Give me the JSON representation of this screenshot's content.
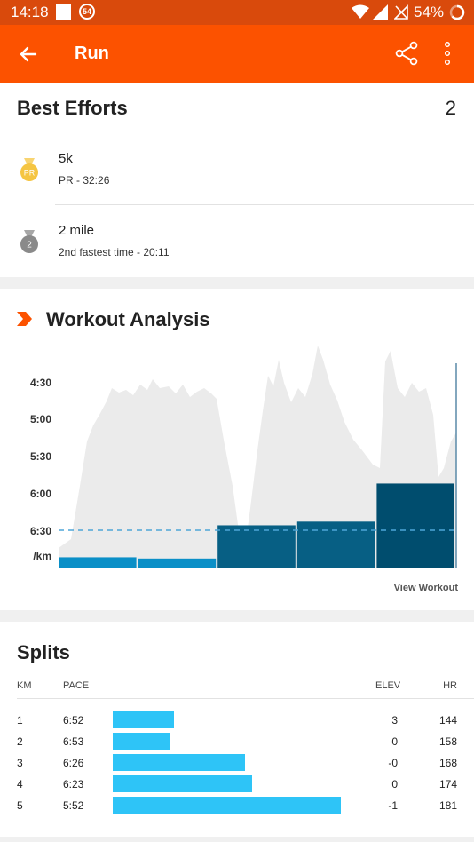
{
  "status_bar": {
    "time": "14:18",
    "notification_count": "54",
    "battery": "54%"
  },
  "app_bar": {
    "title": "Run"
  },
  "best_efforts": {
    "title": "Best Efforts",
    "count": "2",
    "items": [
      {
        "name": "5k",
        "detail": "PR - 32:26",
        "badge": "PR",
        "icon": "pr-medal-icon",
        "color": "#f5c542"
      },
      {
        "name": "2 mile",
        "detail": "2nd fastest time - 20:11",
        "badge": "2",
        "icon": "second-place-medal-icon",
        "color": "#8a8a8a"
      }
    ]
  },
  "workout_analysis": {
    "title": "Workout Analysis",
    "view_link": "View Workout",
    "average_pace": "6:30",
    "y_ticks": [
      "4:30",
      "5:00",
      "5:30",
      "6:00",
      "6:30",
      "/km"
    ]
  },
  "chart_data": {
    "type": "bar",
    "categories": [
      "1",
      "2",
      "3",
      "4",
      "5"
    ],
    "values_seconds_per_km": [
      412,
      413,
      386,
      383,
      352
    ],
    "values": [
      "6:52",
      "6:53",
      "6:26",
      "6:23",
      "5:52"
    ],
    "y_ticks": [
      "4:30",
      "5:00",
      "5:30",
      "6:00",
      "6:30"
    ],
    "ylabel": "/km",
    "average": "6:30",
    "colors": {
      "slow": "#0a8fc7",
      "mid": "#075f84",
      "fast": "#004d6e",
      "background_pace": "#ebebeb"
    }
  },
  "splits": {
    "title": "Splits",
    "headers": {
      "km": "KM",
      "pace": "PACE",
      "elev": "ELEV",
      "hr": "HR"
    },
    "rows": [
      {
        "km": "1",
        "pace": "6:52",
        "elev": "3",
        "hr": "144",
        "fraction": 0.27
      },
      {
        "km": "2",
        "pace": "6:53",
        "elev": "0",
        "hr": "158",
        "fraction": 0.25
      },
      {
        "km": "3",
        "pace": "6:26",
        "elev": "-0",
        "hr": "168",
        "fraction": 0.58
      },
      {
        "km": "4",
        "pace": "6:23",
        "elev": "0",
        "hr": "174",
        "fraction": 0.61
      },
      {
        "km": "5",
        "pace": "5:52",
        "elev": "-1",
        "hr": "181",
        "fraction": 1.0
      }
    ]
  }
}
